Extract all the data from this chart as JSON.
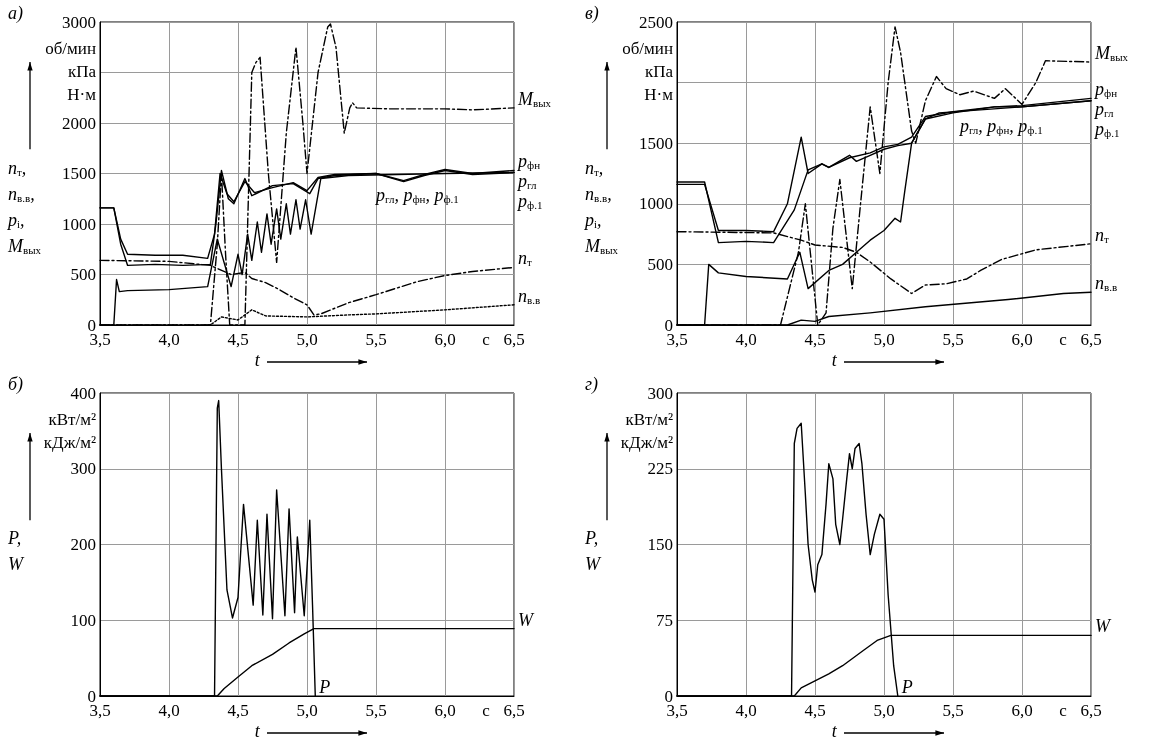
{
  "chart_data": [
    {
      "type": "line",
      "title": "а)",
      "xlabel": "t",
      "ylabel": "n$_{т}$, n$_{в.в}$, p$_{i}$, M$_{вых}$",
      "xlim": [
        3.5,
        6.5
      ],
      "ylim": [
        0,
        3000
      ],
      "xticks": [
        {
          "value": 3.5,
          "label": "3,5"
        },
        {
          "value": 4.0,
          "label": "4,0"
        },
        {
          "value": 4.5,
          "label": "4,5"
        },
        {
          "value": 5.0,
          "label": "5,0"
        },
        {
          "value": 5.5,
          "label": "5,5"
        },
        {
          "value": 6.0,
          "label": "6,0"
        },
        {
          "value": 6.5,
          "label": "6,5"
        }
      ],
      "yticks": [
        0,
        500,
        1000,
        1500,
        2000,
        {
          "value": 2500,
          "label": null
        },
        3000
      ],
      "grid": true,
      "marker": "none",
      "annotations": [
        "об/мин",
        "кПа",
        "Н·м",
        "с",
        {
          "text": "p$_{гл}$, p$_{фн}$, p$_{ф.1}$",
          "x": 5.8,
          "y": 1480
        }
      ],
      "series": [
        {
          "name": "M$_{вых}$",
          "color": "#000000",
          "line_style": "dashed",
          "x": [
            3.5,
            4.3,
            4.35,
            4.38,
            4.41,
            4.44,
            4.55,
            4.6,
            4.63,
            4.66,
            4.72,
            4.78,
            4.85,
            4.92,
            4.97,
            5.0,
            5.08,
            5.15,
            5.17,
            5.21,
            5.27,
            5.31,
            5.33,
            5.36,
            5.6,
            6.0,
            6.2,
            6.5
          ],
          "values": [
            0,
            0,
            800,
            1500,
            700,
            0,
            0,
            2500,
            2600,
            2650,
            1500,
            620,
            1900,
            2750,
            2000,
            1500,
            2500,
            2950,
            2980,
            2750,
            1900,
            2150,
            2200,
            2150,
            2140,
            2140,
            2130,
            2150
          ]
        },
        {
          "name": "p$_{фн}$",
          "color": "#000000",
          "x": [
            3.5,
            3.6,
            3.65,
            3.7,
            3.9,
            4.1,
            4.28,
            4.33,
            4.37,
            4.42,
            4.47,
            4.55,
            4.62,
            4.75,
            4.9,
            5.0,
            5.08,
            5.2,
            5.5,
            5.7,
            5.85,
            6.0,
            6.2,
            6.5
          ],
          "values": [
            1160,
            1160,
            850,
            700,
            690,
            690,
            660,
            900,
            1500,
            1300,
            1220,
            1420,
            1310,
            1360,
            1410,
            1330,
            1460,
            1490,
            1500,
            1430,
            1490,
            1540,
            1500,
            1530
          ]
        },
        {
          "name": "p$_{гл}$",
          "color": "#000000",
          "x": [
            3.5,
            3.6,
            3.65,
            3.7,
            3.9,
            4.1,
            4.3,
            4.34,
            4.38,
            4.43,
            4.47,
            4.55,
            4.6,
            4.75,
            4.9,
            5.02,
            5.08,
            5.2,
            5.5,
            5.7,
            5.85,
            6.0,
            6.2,
            6.5
          ],
          "values": [
            1160,
            1160,
            800,
            590,
            600,
            590,
            600,
            1000,
            1530,
            1250,
            1200,
            1450,
            1280,
            1380,
            1400,
            1300,
            1450,
            1480,
            1500,
            1420,
            1480,
            1530,
            1490,
            1510
          ]
        },
        {
          "name": "p$_{ф.1}$",
          "color": "#000000",
          "x": [
            3.5,
            3.6,
            3.62,
            3.64,
            3.7,
            4.0,
            4.28,
            4.35,
            4.45,
            4.5,
            4.53,
            4.57,
            4.6,
            4.64,
            4.67,
            4.71,
            4.74,
            4.78,
            4.81,
            4.85,
            4.88,
            4.92,
            4.95,
            4.99,
            5.03,
            5.1,
            5.3,
            6.0,
            6.5
          ],
          "values": [
            0,
            0,
            450,
            330,
            340,
            350,
            380,
            850,
            380,
            700,
            500,
            900,
            640,
            1020,
            720,
            1100,
            800,
            1150,
            850,
            1200,
            900,
            1240,
            950,
            1240,
            900,
            1450,
            1480,
            1500,
            1510
          ]
        },
        {
          "name": "n$_{т}$",
          "color": "#000000",
          "line_style": "dashed",
          "x": [
            3.5,
            4.0,
            4.3,
            4.45,
            4.55,
            4.6,
            4.7,
            4.8,
            4.9,
            5.0,
            5.05,
            5.1,
            5.3,
            5.5,
            5.8,
            6.0,
            6.2,
            6.5
          ],
          "values": [
            640,
            630,
            590,
            500,
            520,
            460,
            420,
            350,
            270,
            200,
            100,
            110,
            220,
            300,
            430,
            490,
            530,
            570
          ]
        },
        {
          "name": "n$_{в.в}$",
          "color": "#000000",
          "line_style": "dotted",
          "x": [
            3.5,
            4.3,
            4.38,
            4.5,
            4.6,
            4.7,
            5.0,
            5.3,
            5.5,
            6.0,
            6.5
          ],
          "values": [
            0,
            0,
            80,
            50,
            150,
            90,
            80,
            100,
            110,
            150,
            200
          ]
        }
      ]
    },
    {
      "type": "line",
      "title": "в)",
      "xlabel": "t",
      "ylabel": "n$_{т}$, n$_{в.в}$, p$_{i}$, M$_{вых}$",
      "xlim": [
        3.5,
        6.5
      ],
      "ylim": [
        0,
        2500
      ],
      "xticks": [
        {
          "value": 3.5,
          "label": "3,5"
        },
        {
          "value": 4.0,
          "label": "4,0"
        },
        {
          "value": 4.5,
          "label": "4,5"
        },
        {
          "value": 5.0,
          "label": "5,0"
        },
        {
          "value": 5.5,
          "label": "5,5"
        },
        {
          "value": 6.0,
          "label": "6,0"
        },
        {
          "value": 6.5,
          "label": "6,5"
        }
      ],
      "yticks": [
        0,
        500,
        1000,
        1500,
        {
          "value": 2000,
          "label": null
        },
        2500
      ],
      "grid": true,
      "marker": "none",
      "annotations": [
        "об/мин",
        "кПа",
        "Н·м",
        "с",
        {
          "text": "p$_{гл}$, p$_{фн}$, p$_{ф.1}$",
          "x": 5.85,
          "y": 1800
        }
      ],
      "series": [
        {
          "name": "M$_{вых}$",
          "color": "#000000",
          "line_style": "dashed",
          "x": [
            3.5,
            4.25,
            4.38,
            4.43,
            4.52,
            4.58,
            4.63,
            4.68,
            4.77,
            4.83,
            4.9,
            4.97,
            5.03,
            5.08,
            5.12,
            5.2,
            5.23,
            5.3,
            5.38,
            5.45,
            5.55,
            5.65,
            5.8,
            5.88,
            6.0,
            6.1,
            6.17,
            6.5
          ],
          "values": [
            0,
            0,
            600,
            1000,
            0,
            100,
            800,
            1200,
            300,
            1000,
            1800,
            1250,
            2000,
            2460,
            2250,
            1600,
            1500,
            1850,
            2050,
            1950,
            1900,
            1930,
            1870,
            1950,
            1820,
            2000,
            2180,
            2170
          ]
        },
        {
          "name": "p$_{фн}$",
          "color": "#000000",
          "x": [
            3.5,
            3.7,
            3.8,
            4.0,
            4.2,
            4.35,
            4.45,
            4.55,
            4.6,
            4.75,
            4.9,
            5.0,
            5.1,
            5.2,
            5.3,
            5.5,
            5.8,
            6.0,
            6.5
          ],
          "values": [
            1180,
            1180,
            680,
            690,
            680,
            950,
            1280,
            1330,
            1300,
            1380,
            1420,
            1470,
            1490,
            1550,
            1720,
            1760,
            1800,
            1810,
            1870
          ]
        },
        {
          "name": "p$_{гл}$",
          "color": "#000000",
          "x": [
            3.5,
            3.7,
            3.8,
            4.0,
            4.2,
            4.3,
            4.4,
            4.45,
            4.55,
            4.6,
            4.75,
            4.8,
            4.9,
            5.0,
            5.1,
            5.2,
            5.3,
            5.5,
            5.8,
            6.0,
            6.5
          ],
          "values": [
            1160,
            1160,
            780,
            780,
            770,
            1000,
            1550,
            1250,
            1330,
            1300,
            1400,
            1350,
            1400,
            1450,
            1480,
            1500,
            1700,
            1750,
            1800,
            1800,
            1850
          ]
        },
        {
          "name": "p$_{ф.1}$",
          "color": "#000000",
          "x": [
            3.5,
            3.7,
            3.73,
            3.8,
            4.0,
            4.3,
            4.39,
            4.45,
            4.6,
            4.7,
            4.8,
            4.9,
            5.0,
            5.08,
            5.12,
            5.15,
            5.2,
            5.3,
            5.4,
            6.0,
            6.5
          ],
          "values": [
            0,
            0,
            500,
            430,
            400,
            380,
            600,
            300,
            450,
            500,
            600,
            700,
            780,
            880,
            850,
            1100,
            1500,
            1700,
            1750,
            1800,
            1850
          ]
        },
        {
          "name": "n$_{т}$",
          "color": "#000000",
          "line_style": "dashed",
          "x": [
            3.5,
            4.2,
            4.4,
            4.5,
            4.7,
            4.8,
            4.9,
            5.05,
            5.2,
            5.3,
            5.45,
            5.6,
            5.7,
            5.85,
            6.1,
            6.5
          ],
          "values": [
            770,
            760,
            700,
            660,
            640,
            600,
            520,
            380,
            260,
            330,
            340,
            380,
            450,
            540,
            620,
            670
          ]
        },
        {
          "name": "n$_{в.в}$",
          "color": "#000000",
          "x": [
            3.5,
            4.3,
            4.4,
            4.5,
            4.6,
            4.9,
            5.3,
            5.9,
            6.3,
            6.5
          ],
          "values": [
            0,
            0,
            40,
            30,
            70,
            100,
            150,
            210,
            260,
            270
          ]
        }
      ]
    },
    {
      "type": "line",
      "title": "б)",
      "xlabel": "t",
      "ylabel": "P, W",
      "xlim": [
        3.5,
        6.5
      ],
      "ylim": [
        0,
        400
      ],
      "xticks": [
        {
          "value": 3.5,
          "label": "3,5"
        },
        {
          "value": 4.0,
          "label": "4,0"
        },
        {
          "value": 4.5,
          "label": "4,5"
        },
        {
          "value": 5.0,
          "label": "5,0"
        },
        {
          "value": 5.5,
          "label": "5,5"
        },
        {
          "value": 6.0,
          "label": "6,0"
        },
        {
          "value": 6.5,
          "label": "6,5"
        }
      ],
      "yticks": [
        0,
        100,
        200,
        300,
        400
      ],
      "grid": true,
      "marker": "none",
      "annotations": [
        "кВт/м²",
        "кДж/м²",
        "с"
      ],
      "series": [
        {
          "name": "P",
          "color": "#000000",
          "x": [
            3.5,
            4.33,
            4.35,
            4.36,
            4.38,
            4.42,
            4.46,
            4.5,
            4.54,
            4.61,
            4.64,
            4.68,
            4.71,
            4.75,
            4.78,
            4.84,
            4.87,
            4.91,
            4.93,
            4.98,
            5.02,
            5.04,
            5.06
          ],
          "values": [
            0,
            0,
            380,
            390,
            300,
            140,
            103,
            130,
            253,
            120,
            232,
            107,
            240,
            102,
            272,
            106,
            247,
            110,
            210,
            106,
            232,
            120,
            0
          ]
        },
        {
          "name": "W",
          "color": "#000000",
          "x": [
            3.5,
            4.35,
            4.4,
            4.5,
            4.6,
            4.75,
            4.87,
            4.98,
            5.05,
            6.5
          ],
          "values": [
            0,
            0,
            10,
            25,
            40,
            55,
            70,
            82,
            89,
            89
          ]
        }
      ]
    },
    {
      "type": "line",
      "title": "г)",
      "xlabel": "t",
      "ylabel": "P, W",
      "xlim": [
        3.5,
        6.5
      ],
      "ylim": [
        0,
        300
      ],
      "xticks": [
        {
          "value": 3.5,
          "label": "3,5"
        },
        {
          "value": 4.0,
          "label": "4,0"
        },
        {
          "value": 4.5,
          "label": "4,5"
        },
        {
          "value": 5.0,
          "label": "5,0"
        },
        {
          "value": 5.5,
          "label": "5,5"
        },
        {
          "value": 6.0,
          "label": "6,0"
        },
        {
          "value": 6.5,
          "label": "6,5"
        }
      ],
      "yticks": [
        0,
        75,
        150,
        225,
        300
      ],
      "grid": true,
      "marker": "none",
      "annotations": [
        "кВт/м²",
        "кДж/м²",
        "с"
      ],
      "series": [
        {
          "name": "P",
          "color": "#000000",
          "x": [
            3.5,
            4.33,
            4.35,
            4.37,
            4.4,
            4.43,
            4.45,
            4.48,
            4.5,
            4.52,
            4.55,
            4.58,
            4.6,
            4.63,
            4.65,
            4.68,
            4.7,
            4.73,
            4.75,
            4.77,
            4.79,
            4.82,
            4.84,
            4.87,
            4.9,
            4.93,
            4.97,
            5.0,
            5.03,
            5.07,
            5.1
          ],
          "values": [
            0,
            0,
            250,
            265,
            270,
            200,
            150,
            115,
            103,
            130,
            140,
            190,
            230,
            215,
            170,
            150,
            175,
            215,
            240,
            225,
            245,
            250,
            230,
            180,
            140,
            160,
            180,
            175,
            100,
            30,
            0
          ]
        },
        {
          "name": "W",
          "color": "#000000",
          "x": [
            3.5,
            4.35,
            4.4,
            4.5,
            4.6,
            4.7,
            4.85,
            4.95,
            5.05,
            6.5
          ],
          "values": [
            0,
            0,
            8,
            15,
            22,
            30,
            45,
            55,
            60,
            60
          ]
        }
      ]
    }
  ]
}
